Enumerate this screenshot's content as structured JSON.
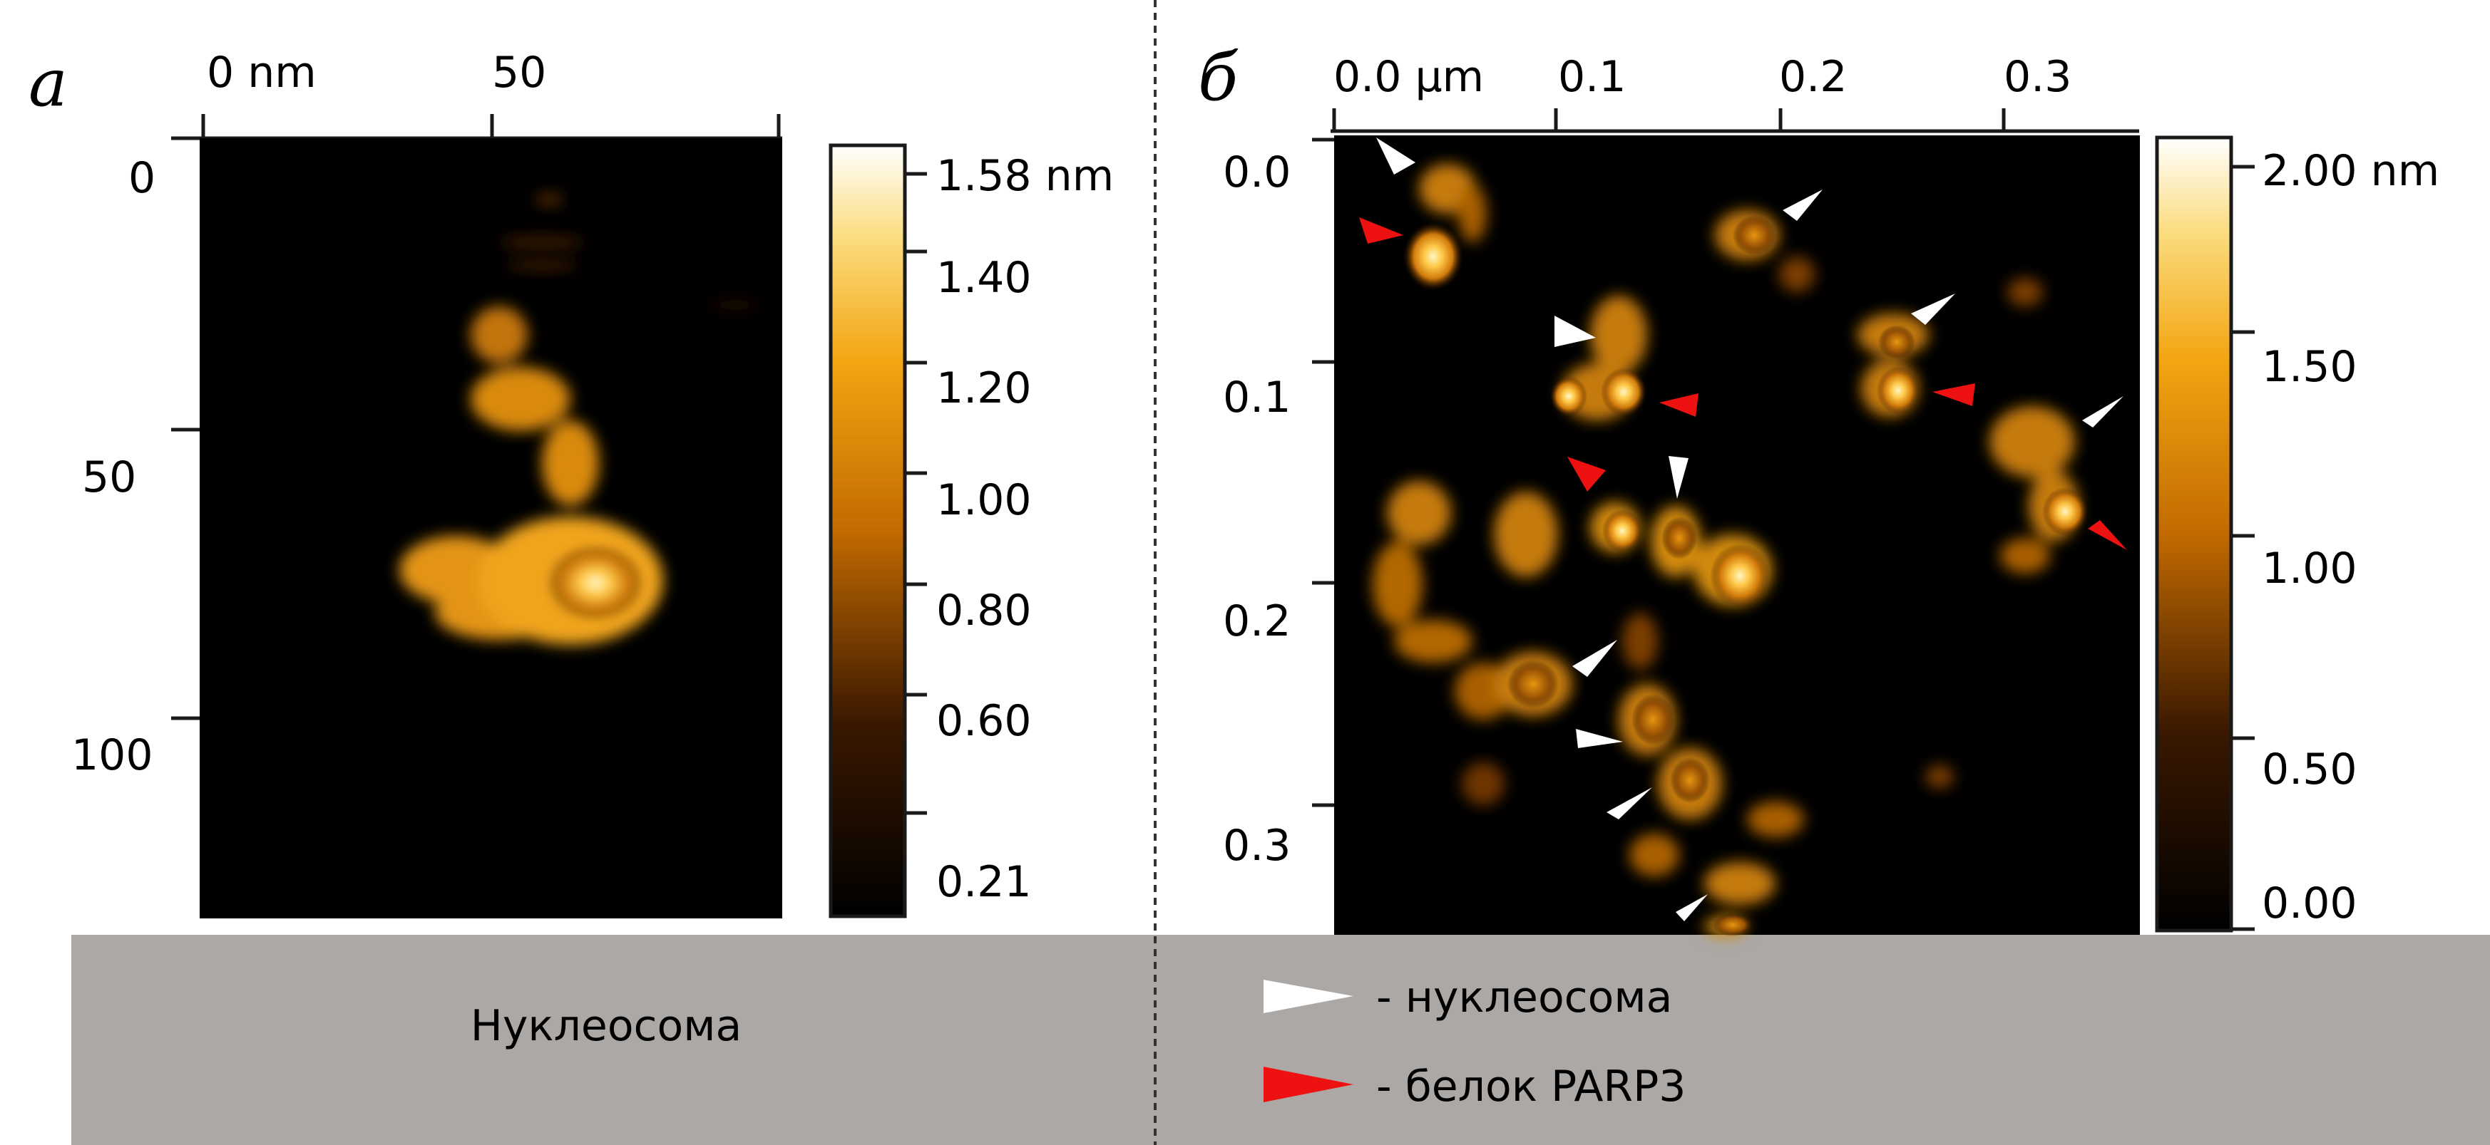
{
  "panels": [
    {
      "label": "а",
      "x_ticks": [
        "0 nm",
        "50"
      ],
      "y_ticks": [
        "0",
        "50",
        "100"
      ],
      "colorbar_ticks": [
        "1.58 nm",
        "1.40",
        "1.20",
        "1.00",
        "0.80",
        "0.60",
        "0.21"
      ],
      "caption": "Нуклеосома"
    },
    {
      "label": "б",
      "x_ticks": [
        "0.0 µm",
        "0.1",
        "0.2",
        "0.3"
      ],
      "y_ticks": [
        "0.0",
        "0.1",
        "0.2",
        "0.3"
      ],
      "colorbar_ticks": [
        "2.00 nm",
        "1.50",
        "1.00",
        "0.50",
        "0.00"
      ],
      "legend": [
        {
          "text": "- нуклеосома",
          "color": "#ffffff"
        },
        {
          "text": "- белок PARP3",
          "color": "#ee1111"
        }
      ]
    }
  ],
  "colors": {
    "background": "#000000",
    "caption_band": "#aba8a6",
    "marker_white": "#ffffff",
    "marker_red": "#ee1111"
  }
}
